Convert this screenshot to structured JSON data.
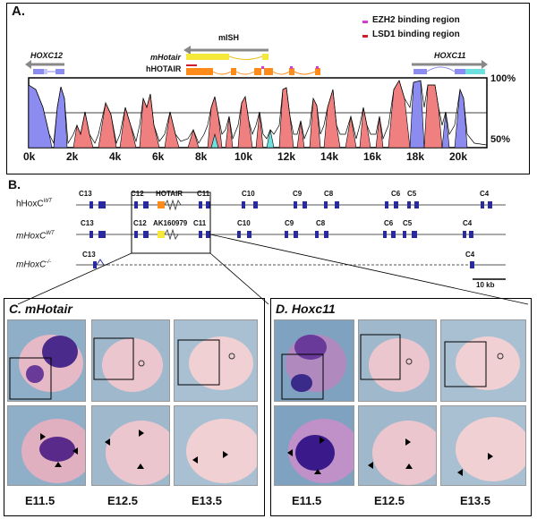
{
  "panelA": {
    "label": "A.",
    "legend": [
      {
        "text": "EZH2 binding region",
        "color": "#d43ad4"
      },
      {
        "text": "LSD1 binding region",
        "color": "#d01c2c"
      }
    ],
    "hoxc12": "HOXC12",
    "hoxc11": "HOXC11",
    "mish": "mISH",
    "mhotair": "mHotair",
    "hhotair": "hHOTAIR",
    "pct_top": "100%",
    "pct_bottom": "50%",
    "x_ticks": [
      "0k",
      "2k",
      "4k",
      "6k",
      "8k",
      "10k",
      "12k",
      "14k",
      "16k",
      "18k",
      "20k"
    ]
  },
  "panelB": {
    "label": "B.",
    "rows": [
      {
        "name": "hHoxC",
        "sup": "WT",
        "genes": [
          "C13",
          "C12",
          "HOTAIR",
          "C11",
          "C10",
          "C9",
          "C8",
          "C6",
          "C5",
          "C4"
        ]
      },
      {
        "name": "mHoxC",
        "sup": "WT",
        "genes": [
          "C13",
          "C12",
          "AK160979",
          "C11",
          "C10",
          "C9",
          "C8",
          "C6",
          "C5",
          "C4"
        ]
      },
      {
        "name": "mHoxC",
        "sup": "-/-",
        "genes": [
          "C13",
          "C4"
        ]
      }
    ],
    "scale": "10 kb"
  },
  "panelC": {
    "label": "C. mHotair"
  },
  "panelD": {
    "label": "D. Hoxc11"
  },
  "stages_c": [
    "E11.5",
    "E12.5",
    "E13.5"
  ],
  "stages_d": [
    "E11.5",
    "E12.5",
    "E13.5"
  ],
  "colors": {
    "conserved": "#f08080",
    "exon": "#8c8cf0",
    "utr": "#6ee0e0",
    "hotair_bar": "#ff8c1a",
    "mhotair_bar": "#f5e83a",
    "gene_blue": "#2a2aa0"
  }
}
